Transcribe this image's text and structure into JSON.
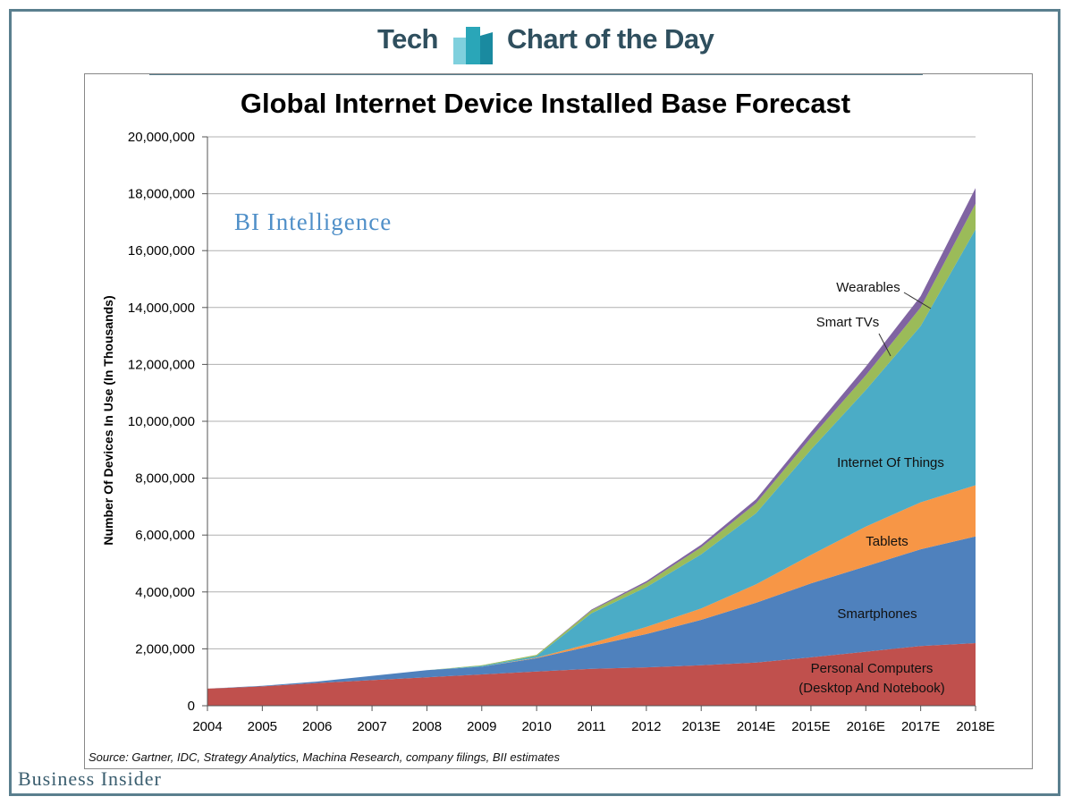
{
  "header": {
    "left_label": "Tech",
    "right_label": "Chart of the Day",
    "logo_colors": [
      "#2aa6b8",
      "#7fd0dd",
      "#1a8aa0"
    ]
  },
  "watermark": "BI Intelligence",
  "source": "Source: Gartner, IDC, Strategy Analytics, Machina Research, company filings, BII estimates",
  "brand": "Business Insider",
  "chart_data": {
    "type": "area",
    "stacked": true,
    "title": "Global Internet Device Installed Base Forecast",
    "xlabel": "",
    "ylabel": "Number Of Devices In Use (In Thousands)",
    "ylim": [
      0,
      20000000
    ],
    "yticks": [
      "0",
      "2,000,000",
      "4,000,000",
      "6,000,000",
      "8,000,000",
      "10,000,000",
      "12,000,000",
      "14,000,000",
      "16,000,000",
      "18,000,000",
      "20,000,000"
    ],
    "grid": true,
    "categories": [
      "2004",
      "2005",
      "2006",
      "2007",
      "2008",
      "2009",
      "2010",
      "2011",
      "2012",
      "2013E",
      "2014E",
      "2015E",
      "2016E",
      "2017E",
      "2018E"
    ],
    "series": [
      {
        "name": "Personal Computers (Desktop And Notebook)",
        "label_lines": [
          "Personal Computers",
          "(Desktop And Notebook)"
        ],
        "color": "#c0504d",
        "values": [
          600000,
          680000,
          800000,
          900000,
          1000000,
          1100000,
          1200000,
          1300000,
          1350000,
          1420000,
          1520000,
          1700000,
          1900000,
          2100000,
          2200000
        ]
      },
      {
        "name": "Smartphones",
        "label_lines": [
          "Smartphones"
        ],
        "color": "#4f81bd",
        "values": [
          0,
          20000,
          50000,
          150000,
          250000,
          270000,
          470000,
          800000,
          1170000,
          1600000,
          2100000,
          2600000,
          3000000,
          3400000,
          3750000
        ]
      },
      {
        "name": "Tablets",
        "label_lines": [
          "Tablets"
        ],
        "color": "#f79646",
        "values": [
          0,
          0,
          0,
          0,
          0,
          0,
          20000,
          100000,
          250000,
          400000,
          650000,
          1000000,
          1400000,
          1650000,
          1800000
        ]
      },
      {
        "name": "Internet Of Things",
        "label_lines": [
          "Internet Of Things"
        ],
        "color": "#4bacc6",
        "values": [
          0,
          0,
          0,
          0,
          0,
          30000,
          60000,
          1050000,
          1400000,
          1900000,
          2500000,
          3700000,
          4800000,
          6200000,
          9000000
        ]
      },
      {
        "name": "Smart TVs",
        "label_lines": [
          "Smart TVs"
        ],
        "color": "#9bbb59",
        "values": [
          0,
          0,
          0,
          0,
          0,
          20000,
          40000,
          100000,
          150000,
          250000,
          350000,
          420000,
          520000,
          650000,
          900000
        ]
      },
      {
        "name": "Wearables",
        "label_lines": [
          "Wearables"
        ],
        "color": "#8064a2",
        "values": [
          0,
          0,
          0,
          0,
          0,
          0,
          0,
          30000,
          60000,
          90000,
          140000,
          200000,
          300000,
          400000,
          550000
        ]
      }
    ]
  }
}
